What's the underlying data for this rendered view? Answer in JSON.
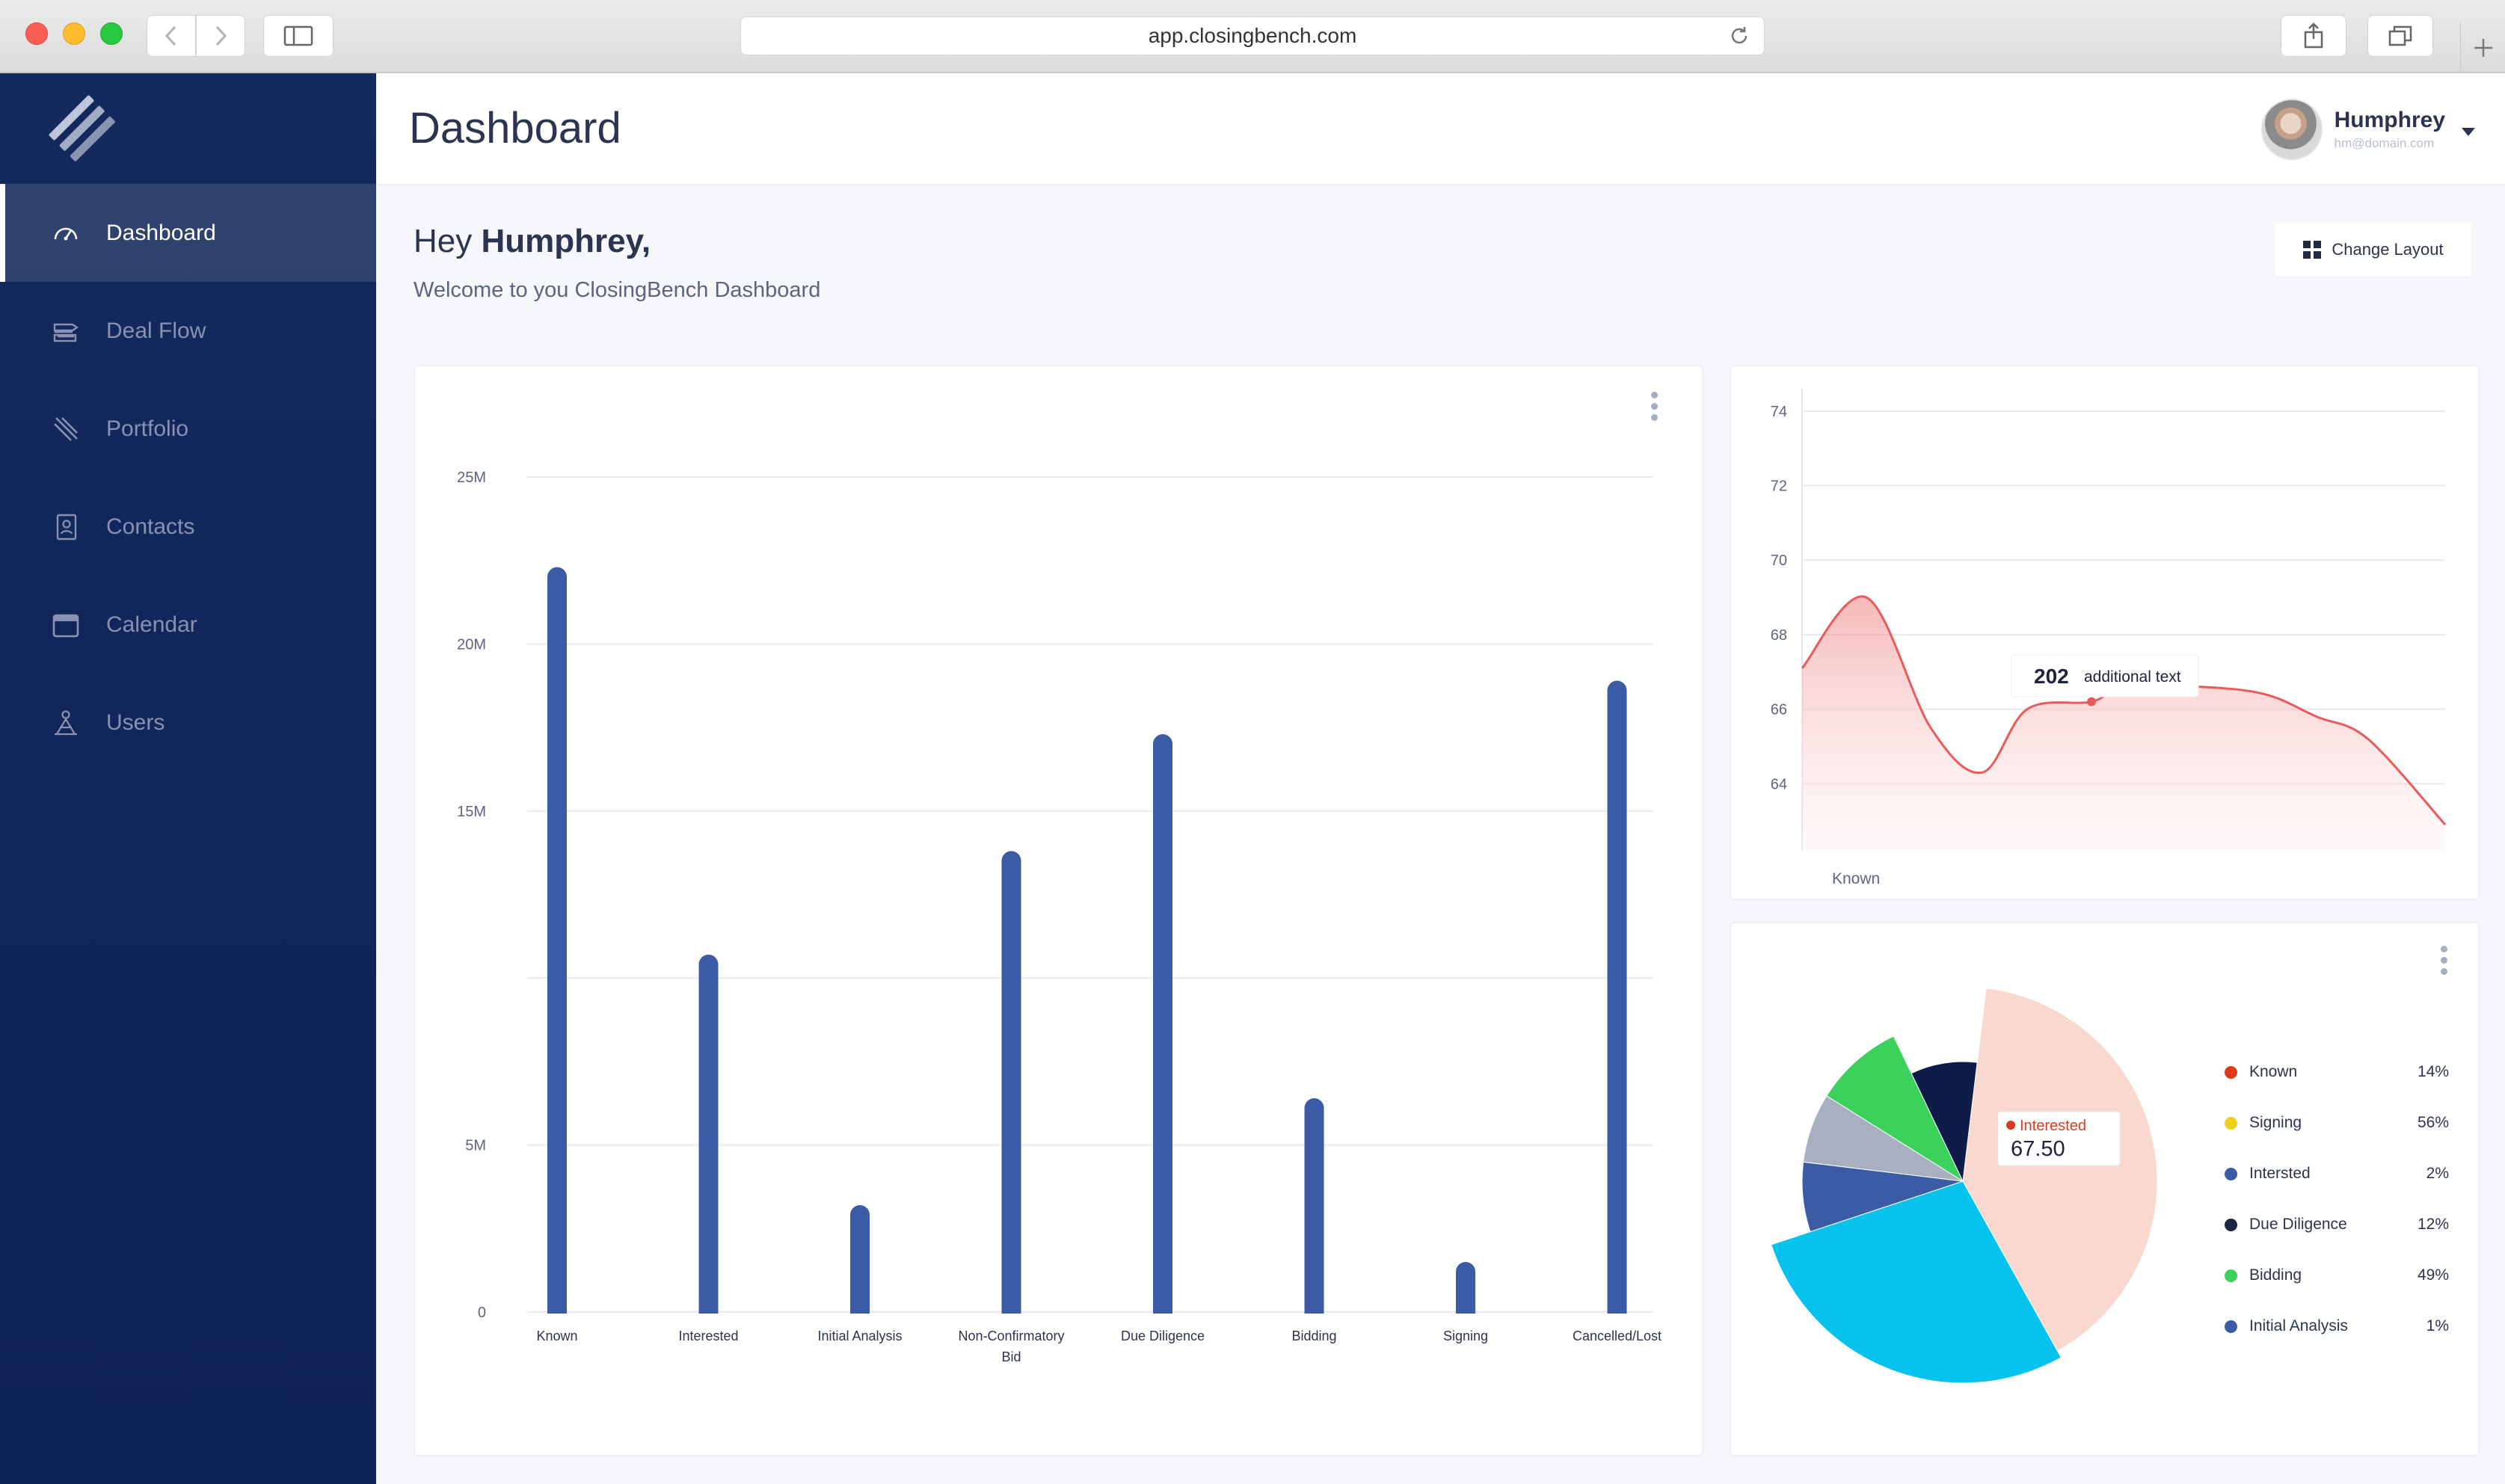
{
  "browser": {
    "url": "app.closingbench.com"
  },
  "sidebar": {
    "items": [
      {
        "label": "Dashboard",
        "icon": "speedometer-icon",
        "active": true
      },
      {
        "label": "Deal Flow",
        "icon": "deal-flow-icon",
        "active": false
      },
      {
        "label": "Portfolio",
        "icon": "portfolio-icon",
        "active": false
      },
      {
        "label": "Contacts",
        "icon": "contacts-icon",
        "active": false
      },
      {
        "label": "Calendar",
        "icon": "calendar-icon",
        "active": false
      },
      {
        "label": "Users",
        "icon": "users-icon",
        "active": false
      }
    ]
  },
  "header": {
    "title": "Dashboard",
    "user": {
      "name": "Humphrey",
      "email": "hm@domain.com"
    }
  },
  "welcome": {
    "greeting": "Hey",
    "name": "Humphrey,",
    "subtitle": "Welcome to you ClosingBench Dashboard",
    "change_layout": "Change Layout"
  },
  "colors": {
    "sidebar": "#12275b",
    "bar": "#3c5ba5",
    "line": "#ea5a5a",
    "accent": "#2b3450"
  },
  "chart_data": [
    {
      "type": "bar",
      "categories": [
        "Known",
        "Interested",
        "Initial Analysis",
        "Non-Confirmatory Bid",
        "Due Diligence",
        "Bidding",
        "Signing",
        "Cancelled/Lost"
      ],
      "values": [
        22300000,
        10700000,
        3200000,
        13800000,
        17300000,
        6400000,
        1500000,
        18900000
      ],
      "y_ticks": [
        "0",
        "5M",
        "",
        "15M",
        "20M",
        "25M"
      ],
      "y_tick_values": [
        0,
        5000000,
        10000000,
        15000000,
        20000000,
        25000000
      ],
      "ylim": [
        0,
        25000000
      ],
      "grid": true
    },
    {
      "type": "area",
      "x_label": "Known",
      "y_ticks": [
        "64",
        "66",
        "68",
        "70",
        "72",
        "74"
      ],
      "ylim": [
        62.2,
        74.8
      ],
      "x": [
        0,
        0.1,
        0.2,
        0.28,
        0.35,
        0.45,
        0.5,
        0.62,
        0.72,
        0.8,
        0.88,
        1
      ],
      "values": [
        67.1,
        69.0,
        65.5,
        64.3,
        66.0,
        66.2,
        66.6,
        66.6,
        66.4,
        65.8,
        65.2,
        62.9
      ],
      "tooltip": {
        "value": "202",
        "text": "additional text"
      }
    },
    {
      "type": "pie",
      "slices": [
        {
          "label": "Interested",
          "value": 40,
          "color": "#f9d8cf"
        },
        {
          "label": "Signing",
          "value": 28,
          "color": "#05c3ec"
        },
        {
          "label": "Interested",
          "value": 7,
          "color": "#3c5ba5"
        },
        {
          "label": "Initial Analysis",
          "value": 7,
          "color": "#a7afc0"
        },
        {
          "label": "Bidding",
          "value": 9,
          "color": "#3bd15b"
        },
        {
          "label": "Due Diligence",
          "value": 9,
          "color": "#0f1b48"
        }
      ],
      "tooltip": {
        "label": "Interested",
        "value": "67.50"
      },
      "legend": [
        {
          "label": "Known",
          "value": "14%",
          "color": "#dd3a1b"
        },
        {
          "label": "Signing",
          "value": "56%",
          "color": "#ecd11b"
        },
        {
          "label": "Intersted",
          "value": "2%",
          "color": "#3c5ba5"
        },
        {
          "label": "Due Diligence",
          "value": "12%",
          "color": "#1d2740"
        },
        {
          "label": "Bidding",
          "value": "49%",
          "color": "#3bd15b"
        },
        {
          "label": "Initial Analysis",
          "value": "1%",
          "color": "#3c5ba5"
        }
      ]
    }
  ]
}
